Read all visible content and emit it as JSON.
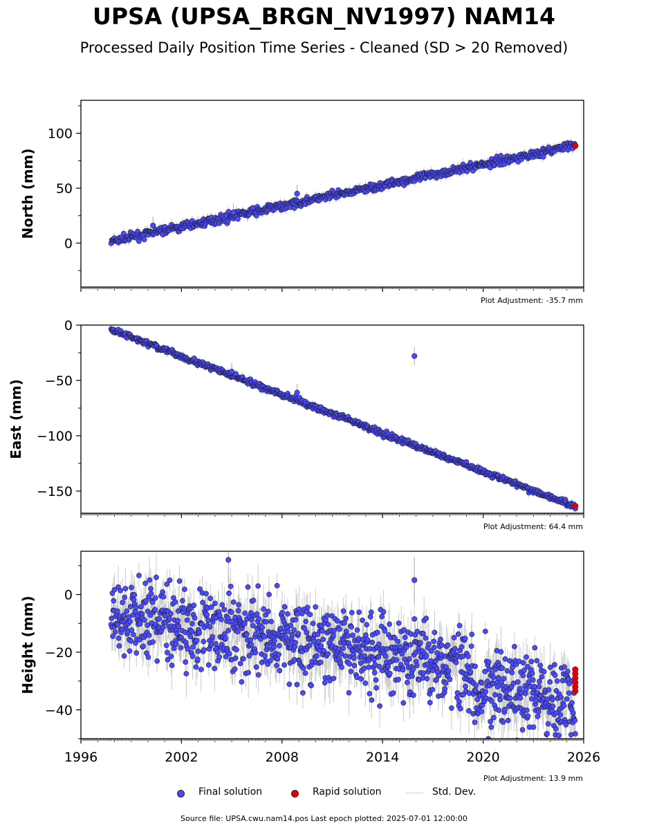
{
  "header": {
    "title": "UPSA (UPSA_BRGN_NV1997) NAM14",
    "subtitle": "Processed Daily Position Time Series - Cleaned (SD > 20 Removed)"
  },
  "colors": {
    "final": "#4a4aff",
    "rapid": "#e0000b",
    "std_dev": "#b4b4b4",
    "marker_edge": "#1a1a1a"
  },
  "chart_data": [
    {
      "type": "scatter",
      "ylabel": "North (mm)",
      "ylim": [
        -40,
        130
      ],
      "xlim": [
        1996,
        2026
      ],
      "y_ticks": [
        0,
        50,
        100
      ],
      "x_ticks": [
        1996,
        2002,
        2008,
        2014,
        2020,
        2026
      ],
      "x_tick_labels_shown": false,
      "adjustment": "Plot Adjustment: -35.7 mm",
      "trend": {
        "start": [
          1997.8,
          1.5
        ],
        "end": [
          2025.5,
          89
        ]
      },
      "noise_mm": 1.8,
      "error_mm": 3,
      "outliers": [
        [
          2005.1,
          28
        ],
        [
          2008.9,
          45
        ],
        [
          2000.3,
          16
        ]
      ],
      "rapid_points": [
        [
          2025.5,
          88.5
        ]
      ]
    },
    {
      "type": "scatter",
      "ylabel": "East (mm)",
      "ylim": [
        -170,
        0
      ],
      "xlim": [
        1996,
        2026
      ],
      "y_ticks": [
        -150,
        -100,
        -50,
        0
      ],
      "x_ticks": [
        1996,
        2002,
        2008,
        2014,
        2020,
        2026
      ],
      "x_tick_labels_shown": false,
      "adjustment": "Plot Adjustment: 64.4 mm",
      "trend": {
        "start": [
          1997.8,
          -4
        ],
        "end": [
          2025.5,
          -164
        ]
      },
      "noise_mm": 1.3,
      "error_mm": 2.5,
      "outliers": [
        [
          2015.9,
          -28
        ],
        [
          2008.9,
          -61
        ],
        [
          2005.0,
          -42
        ]
      ],
      "rapid_points": [
        [
          2025.5,
          -163.5
        ]
      ]
    },
    {
      "type": "scatter",
      "ylabel": "Height (mm)",
      "ylim": [
        -50,
        15
      ],
      "xlim": [
        1996,
        2026
      ],
      "y_ticks": [
        -40,
        -20,
        0
      ],
      "x_ticks": [
        1996,
        2002,
        2008,
        2014,
        2020,
        2026
      ],
      "x_tick_labels_shown": true,
      "adjustment": "Plot Adjustment: 13.9 mm",
      "trend": {
        "start": [
          1997.8,
          -9
        ],
        "end": [
          2025.5,
          -31
        ]
      },
      "step": {
        "at": 2019.3,
        "delta": -11
      },
      "noise_mm": 7,
      "error_mm": 5,
      "outliers": [
        [
          2015.9,
          5
        ],
        [
          2004.8,
          12
        ]
      ],
      "rapid_points": [
        [
          2025.5,
          -26
        ],
        [
          2025.5,
          -27.5
        ],
        [
          2025.5,
          -29
        ],
        [
          2025.5,
          -30.5
        ],
        [
          2025.5,
          -32
        ],
        [
          2025.5,
          -33.5
        ]
      ]
    }
  ],
  "legend": {
    "final": "Final solution",
    "rapid": "Rapid solution",
    "std": "Std. Dev."
  },
  "footer": {
    "source": "Source file: UPSA.cwu.nam14.pos  Last epoch plotted: 2025-07-01 12:00:00"
  }
}
